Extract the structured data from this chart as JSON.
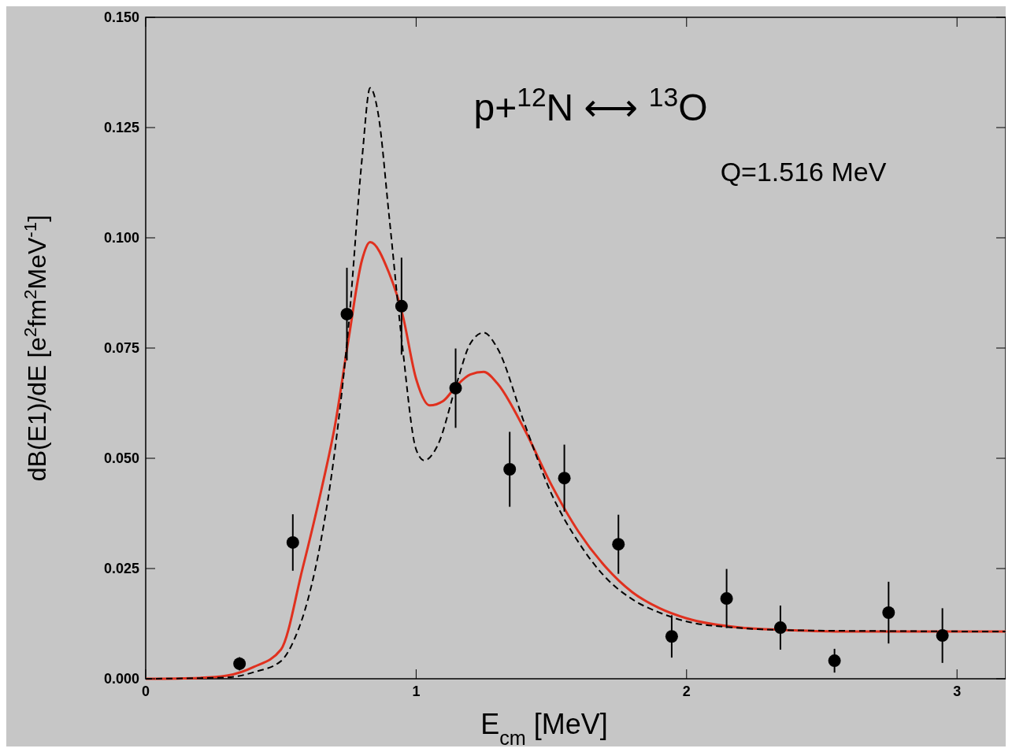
{
  "chart_data": {
    "type": "line",
    "xlabel": "E$_{cm}$ [MeV]",
    "ylabel": "dB(E1)/dE  [e$^{2}$fm$^{2}$MeV$^{-1}$]",
    "annotations": [
      "p+$^{12}$N ⟷ $^{13}$O",
      "Q=1.516 MeV"
    ],
    "xlim": [
      0,
      3.18
    ],
    "ylim": [
      0,
      0.15
    ],
    "xticks": [
      0,
      1,
      2,
      3
    ],
    "yticks": [
      {
        "value": 0,
        "label": "0.000"
      },
      {
        "value": 0.025,
        "label": "0.025"
      },
      {
        "value": 0.05,
        "label": "0.050"
      },
      {
        "value": 0.075,
        "label": "0.075"
      },
      {
        "value": 0.1,
        "label": "0.100"
      },
      {
        "value": 0.125,
        "label": "0.125"
      },
      {
        "value": 0.15,
        "label": "0.150"
      }
    ],
    "grid": false,
    "series": [
      {
        "color": "#000000",
        "line_style": "dashed",
        "x": [
          0,
          0.3,
          0.4,
          0.5,
          0.55,
          0.6,
          0.65,
          0.7,
          0.75,
          0.8,
          0.83,
          0.86,
          0.9,
          0.95,
          1.0,
          1.03,
          1.08,
          1.15,
          1.2,
          1.25,
          1.3,
          1.4,
          1.5,
          1.6,
          1.7,
          1.8,
          1.9,
          2.0,
          2.2,
          2.4,
          2.8,
          3.18
        ],
        "values": [
          0,
          0.0003,
          0.0015,
          0.004,
          0.009,
          0.018,
          0.032,
          0.052,
          0.08,
          0.118,
          0.134,
          0.128,
          0.105,
          0.075,
          0.052,
          0.0495,
          0.053,
          0.067,
          0.076,
          0.0785,
          0.075,
          0.058,
          0.042,
          0.031,
          0.023,
          0.018,
          0.015,
          0.013,
          0.0115,
          0.011,
          0.0108,
          0.0107
        ]
      },
      {
        "color": "#e0301e",
        "line_style": "solid",
        "x": [
          0,
          0.2,
          0.3,
          0.4,
          0.5,
          0.58,
          0.65,
          0.7,
          0.75,
          0.8,
          0.83,
          0.9,
          0.95,
          1.0,
          1.05,
          1.1,
          1.15,
          1.2,
          1.25,
          1.3,
          1.4,
          1.5,
          1.6,
          1.7,
          1.8,
          1.9,
          2.0,
          2.2,
          2.4,
          2.6,
          3.18
        ],
        "values": [
          0,
          0.0002,
          0.0007,
          0.0027,
          0.0066,
          0.025,
          0.043,
          0.0575,
          0.077,
          0.095,
          0.099,
          0.092,
          0.0825,
          0.068,
          0.062,
          0.063,
          0.0665,
          0.069,
          0.0696,
          0.067,
          0.0566,
          0.044,
          0.0334,
          0.0254,
          0.0196,
          0.016,
          0.0137,
          0.0116,
          0.011,
          0.0107,
          0.0107
        ]
      },
      {
        "type": "scatter",
        "color": "#000000",
        "marker": "circle",
        "x": [
          0.347,
          0.544,
          0.744,
          0.946,
          1.146,
          1.346,
          1.548,
          1.748,
          1.945,
          2.148,
          2.347,
          2.547,
          2.747,
          2.946
        ],
        "values": [
          0.0034,
          0.0309,
          0.0827,
          0.0845,
          0.0659,
          0.0475,
          0.0455,
          0.0305,
          0.0096,
          0.0182,
          0.0116,
          0.0041,
          0.015,
          0.0098
        ],
        "errors": [
          0.0015,
          0.0064,
          0.0105,
          0.011,
          0.009,
          0.0085,
          0.0076,
          0.0067,
          0.0048,
          0.0067,
          0.005,
          0.0027,
          0.007,
          0.0062
        ]
      }
    ]
  }
}
